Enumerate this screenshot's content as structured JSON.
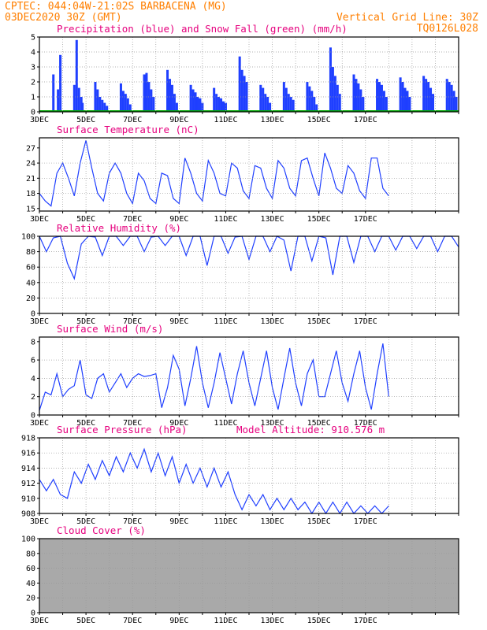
{
  "header": {
    "line1": "CPTEC:   044:04W-21:02S  BARBACENA (MG)",
    "line2": "03DEC2020 30Z (GMT)",
    "right1": "Vertical Grid Line: 30Z",
    "right2": "TQ0126L028"
  },
  "colors": {
    "accent_text": "#ff7f00",
    "title_text": "#e6007e",
    "line": "#1f3fff",
    "snow": "#00aa00",
    "cloud": "#a9a9a9"
  },
  "x_ticks": [
    "3DEC",
    "5DEC",
    "7DEC",
    "9DEC",
    "11DEC",
    "13DEC",
    "15DEC",
    "17DEC"
  ],
  "chart_data": [
    {
      "type": "bar",
      "title": "Precipitation (blue) and Snow Fall (green) (mm/h)",
      "ylim": [
        0,
        5
      ],
      "yticks": [
        "0",
        "1",
        "2",
        "3",
        "4",
        "5"
      ],
      "series": [
        {
          "name": "Precipitation",
          "color": "#1f3fff"
        },
        {
          "name": "Snow Fall",
          "color": "#00aa00"
        }
      ],
      "x_days": [
        0.6,
        0.8,
        0.9,
        1.5,
        1.6,
        1.7,
        1.8,
        1.85,
        2.4,
        2.5,
        2.6,
        2.7,
        2.8,
        2.9,
        3.5,
        3.6,
        3.7,
        3.8,
        3.9,
        4.5,
        4.6,
        4.7,
        4.8,
        4.9,
        5.5,
        5.6,
        5.7,
        5.8,
        5.9,
        6.5,
        6.6,
        6.7,
        6.8,
        6.9,
        7.0,
        7.5,
        7.6,
        7.7,
        7.8,
        7.9,
        8.0,
        8.6,
        8.7,
        8.8,
        8.9,
        9.5,
        9.6,
        9.7,
        9.8,
        9.9,
        10.5,
        10.6,
        10.7,
        10.8,
        10.9,
        11.5,
        11.6,
        11.7,
        11.8,
        11.9,
        12.5,
        12.6,
        12.7,
        12.8,
        12.9,
        13.5,
        13.6,
        13.7,
        13.8,
        13.9,
        14.5,
        14.6,
        14.7,
        14.8,
        14.9,
        15.5,
        15.6,
        15.7,
        15.8,
        15.9,
        16.5,
        16.6,
        16.7,
        16.8,
        16.9,
        17.5,
        17.6,
        17.7,
        17.8,
        17.9
      ],
      "values": [
        2.5,
        1.5,
        3.8,
        1.8,
        4.8,
        1.6,
        1.0,
        0.6,
        2.0,
        1.5,
        1.0,
        0.8,
        0.6,
        0.4,
        1.9,
        1.4,
        1.2,
        0.9,
        0.5,
        2.5,
        2.6,
        2.0,
        1.5,
        1.0,
        2.8,
        2.2,
        1.8,
        1.2,
        0.6,
        1.8,
        1.5,
        1.3,
        1.0,
        0.9,
        0.6,
        1.6,
        1.2,
        1.0,
        0.9,
        0.7,
        0.6,
        3.7,
        2.8,
        2.4,
        2.0,
        1.8,
        1.6,
        1.2,
        1.0,
        0.6,
        2.0,
        1.6,
        1.2,
        1.0,
        0.8,
        2.0,
        1.7,
        1.4,
        1.0,
        0.5,
        4.3,
        3.0,
        2.4,
        1.8,
        1.2,
        2.5,
        2.2,
        1.9,
        1.5,
        1.0,
        2.2,
        2.0,
        1.8,
        1.4,
        1.0,
        2.3,
        2.0,
        1.6,
        1.4,
        1.0,
        2.4,
        2.2,
        2.0,
        1.6,
        1.2,
        2.2,
        2.0,
        1.8,
        1.4,
        1.0
      ]
    },
    {
      "type": "line",
      "title": "Surface Temperature (nC)",
      "ylim": [
        14.5,
        29
      ],
      "yticks": [
        "15",
        "18",
        "21",
        "24",
        "27"
      ],
      "series": [
        {
          "name": "",
          "color": "#1f3fff"
        }
      ],
      "x_days": [
        0,
        0.25,
        0.5,
        0.75,
        1.0,
        1.25,
        1.5,
        1.75,
        2.0,
        2.25,
        2.5,
        2.75,
        3.0,
        3.25,
        3.5,
        3.75,
        4.0,
        4.25,
        4.5,
        4.75,
        5.0,
        5.25,
        5.5,
        5.75,
        6.0,
        6.25,
        6.5,
        6.75,
        7.0,
        7.25,
        7.5,
        7.75,
        8.0,
        8.25,
        8.5,
        8.75,
        9.0,
        9.25,
        9.5,
        9.75,
        10.0,
        10.25,
        10.5,
        10.75,
        11.0,
        11.25,
        11.5,
        11.75,
        12.0,
        12.25,
        12.5,
        12.75,
        13.0,
        13.25,
        13.5,
        13.75,
        14.0,
        14.25,
        14.5,
        14.75,
        15.0
      ],
      "values": [
        18,
        16.5,
        15.5,
        22,
        24,
        21,
        17.5,
        24,
        28.5,
        23,
        18,
        16.5,
        22,
        24,
        22,
        18,
        16,
        22,
        20.5,
        17,
        16,
        22,
        21.5,
        17,
        16,
        25,
        22,
        18,
        16.5,
        24.5,
        22,
        18,
        17.5,
        24,
        23,
        18.5,
        17,
        23.5,
        23,
        19,
        17,
        24.5,
        23,
        19,
        17.5,
        24.5,
        25,
        21,
        17.5,
        26,
        23,
        19,
        18,
        23.5,
        22,
        18.5,
        17,
        25,
        25,
        19,
        17.5
      ]
    },
    {
      "type": "line",
      "title": "Relative Humidity (%)",
      "ylim": [
        0,
        100
      ],
      "yticks": [
        "0",
        "20",
        "40",
        "60",
        "80",
        "100"
      ],
      "series": [
        {
          "name": "",
          "color": "#1f3fff"
        }
      ],
      "x_days": [
        0,
        0.3,
        0.6,
        0.9,
        1.2,
        1.5,
        1.8,
        2.1,
        2.4,
        2.7,
        3.0,
        3.3,
        3.6,
        3.9,
        4.2,
        4.5,
        4.8,
        5.1,
        5.4,
        5.7,
        6.0,
        6.3,
        6.6,
        6.9,
        7.2,
        7.5,
        7.8,
        8.1,
        8.4,
        8.7,
        9.0,
        9.3,
        9.6,
        9.9,
        10.2,
        10.5,
        10.8,
        11.1,
        11.4,
        11.7,
        12.0,
        12.3,
        12.6,
        12.9,
        13.2,
        13.5,
        13.8,
        14.1,
        14.4,
        14.7,
        15.0,
        15.3,
        15.6,
        15.9,
        16.2,
        16.5,
        16.8,
        17.1,
        17.4,
        17.7,
        18.0
      ],
      "values": [
        100,
        80,
        98,
        100,
        65,
        45,
        90,
        100,
        99,
        75,
        100,
        100,
        88,
        100,
        100,
        80,
        99,
        100,
        88,
        100,
        100,
        75,
        100,
        100,
        62,
        100,
        100,
        78,
        99,
        100,
        70,
        100,
        100,
        80,
        100,
        95,
        55,
        100,
        100,
        68,
        100,
        98,
        50,
        100,
        100,
        66,
        100,
        100,
        80,
        100,
        100,
        82,
        100,
        100,
        84,
        100,
        100,
        80,
        100,
        100,
        86
      ]
    },
    {
      "type": "line",
      "title": "Surface Wind (m/s)",
      "ylim": [
        0,
        8.5
      ],
      "yticks": [
        "0",
        "2",
        "4",
        "6",
        "8"
      ],
      "series": [
        {
          "name": "",
          "color": "#1f3fff"
        }
      ],
      "x_days": [
        0,
        0.25,
        0.5,
        0.75,
        1.0,
        1.25,
        1.5,
        1.75,
        2.0,
        2.25,
        2.5,
        2.75,
        3.0,
        3.25,
        3.5,
        3.75,
        4.0,
        4.25,
        4.5,
        4.75,
        5.0,
        5.25,
        5.5,
        5.75,
        6.0,
        6.25,
        6.5,
        6.75,
        7.0,
        7.25,
        7.5,
        7.75,
        8.0,
        8.25,
        8.5,
        8.75,
        9.0,
        9.25,
        9.5,
        9.75,
        10.0,
        10.25,
        10.5,
        10.75,
        11.0,
        11.25,
        11.5,
        11.75,
        12.0,
        12.25,
        12.5,
        12.75,
        13.0,
        13.25,
        13.5,
        13.75,
        14.0,
        14.25,
        14.5,
        14.75,
        15.0
      ],
      "values": [
        0.5,
        2.5,
        2.2,
        4.5,
        2.0,
        2.8,
        3.2,
        6.0,
        2.2,
        1.8,
        4.0,
        4.5,
        2.5,
        3.5,
        4.5,
        3.0,
        4.0,
        4.5,
        4.2,
        4.3,
        4.5,
        0.8,
        3.0,
        6.5,
        5.0,
        1.0,
        4.0,
        7.5,
        3.5,
        0.8,
        3.5,
        6.8,
        4.0,
        1.2,
        4.5,
        7.0,
        3.5,
        1.0,
        4.0,
        7.0,
        3.0,
        0.6,
        4.0,
        7.3,
        3.5,
        1.0,
        4.5,
        6.0,
        2.0,
        2.0,
        4.5,
        7.0,
        3.5,
        1.5,
        4.5,
        7.0,
        3.0,
        0.6,
        4.5,
        7.8,
        2.0
      ]
    },
    {
      "type": "line",
      "title": "Surface Pressure (hPa)",
      "annotation": "Model Altitude: 910.576 m",
      "ylim": [
        908,
        918
      ],
      "yticks": [
        "908",
        "910",
        "912",
        "914",
        "916",
        "918"
      ],
      "series": [
        {
          "name": "",
          "color": "#1f3fff"
        }
      ],
      "x_days": [
        0,
        0.3,
        0.6,
        0.9,
        1.2,
        1.5,
        1.8,
        2.1,
        2.4,
        2.7,
        3.0,
        3.3,
        3.6,
        3.9,
        4.2,
        4.5,
        4.8,
        5.1,
        5.4,
        5.7,
        6.0,
        6.3,
        6.6,
        6.9,
        7.2,
        7.5,
        7.8,
        8.1,
        8.4,
        8.7,
        9.0,
        9.3,
        9.6,
        9.9,
        10.2,
        10.5,
        10.8,
        11.1,
        11.4,
        11.7,
        12.0,
        12.3,
        12.6,
        12.9,
        13.2,
        13.5,
        13.8,
        14.1,
        14.4,
        14.7,
        15.0
      ],
      "values": [
        912.5,
        911,
        912.5,
        910.5,
        910,
        913.5,
        912,
        914.5,
        912.5,
        915,
        913,
        915.5,
        913.5,
        916,
        914,
        916.5,
        913.5,
        916,
        913,
        915.5,
        912,
        914.5,
        912,
        914,
        911.5,
        914,
        911.5,
        913.5,
        910.5,
        908.5,
        910.5,
        909,
        910.5,
        908.5,
        910,
        908.5,
        910,
        908.5,
        909.5,
        908,
        909.5,
        908,
        909.5,
        908,
        909.5,
        908,
        909,
        908,
        909,
        908,
        909
      ]
    },
    {
      "type": "area",
      "title": "Cloud Cover (%)",
      "ylim": [
        0,
        100
      ],
      "yticks": [
        "0",
        "20",
        "40",
        "60",
        "80",
        "100"
      ],
      "series": [
        {
          "name": "",
          "color": "#a9a9a9"
        }
      ],
      "x_days": [
        0,
        18
      ],
      "values": [
        100,
        100
      ]
    }
  ]
}
